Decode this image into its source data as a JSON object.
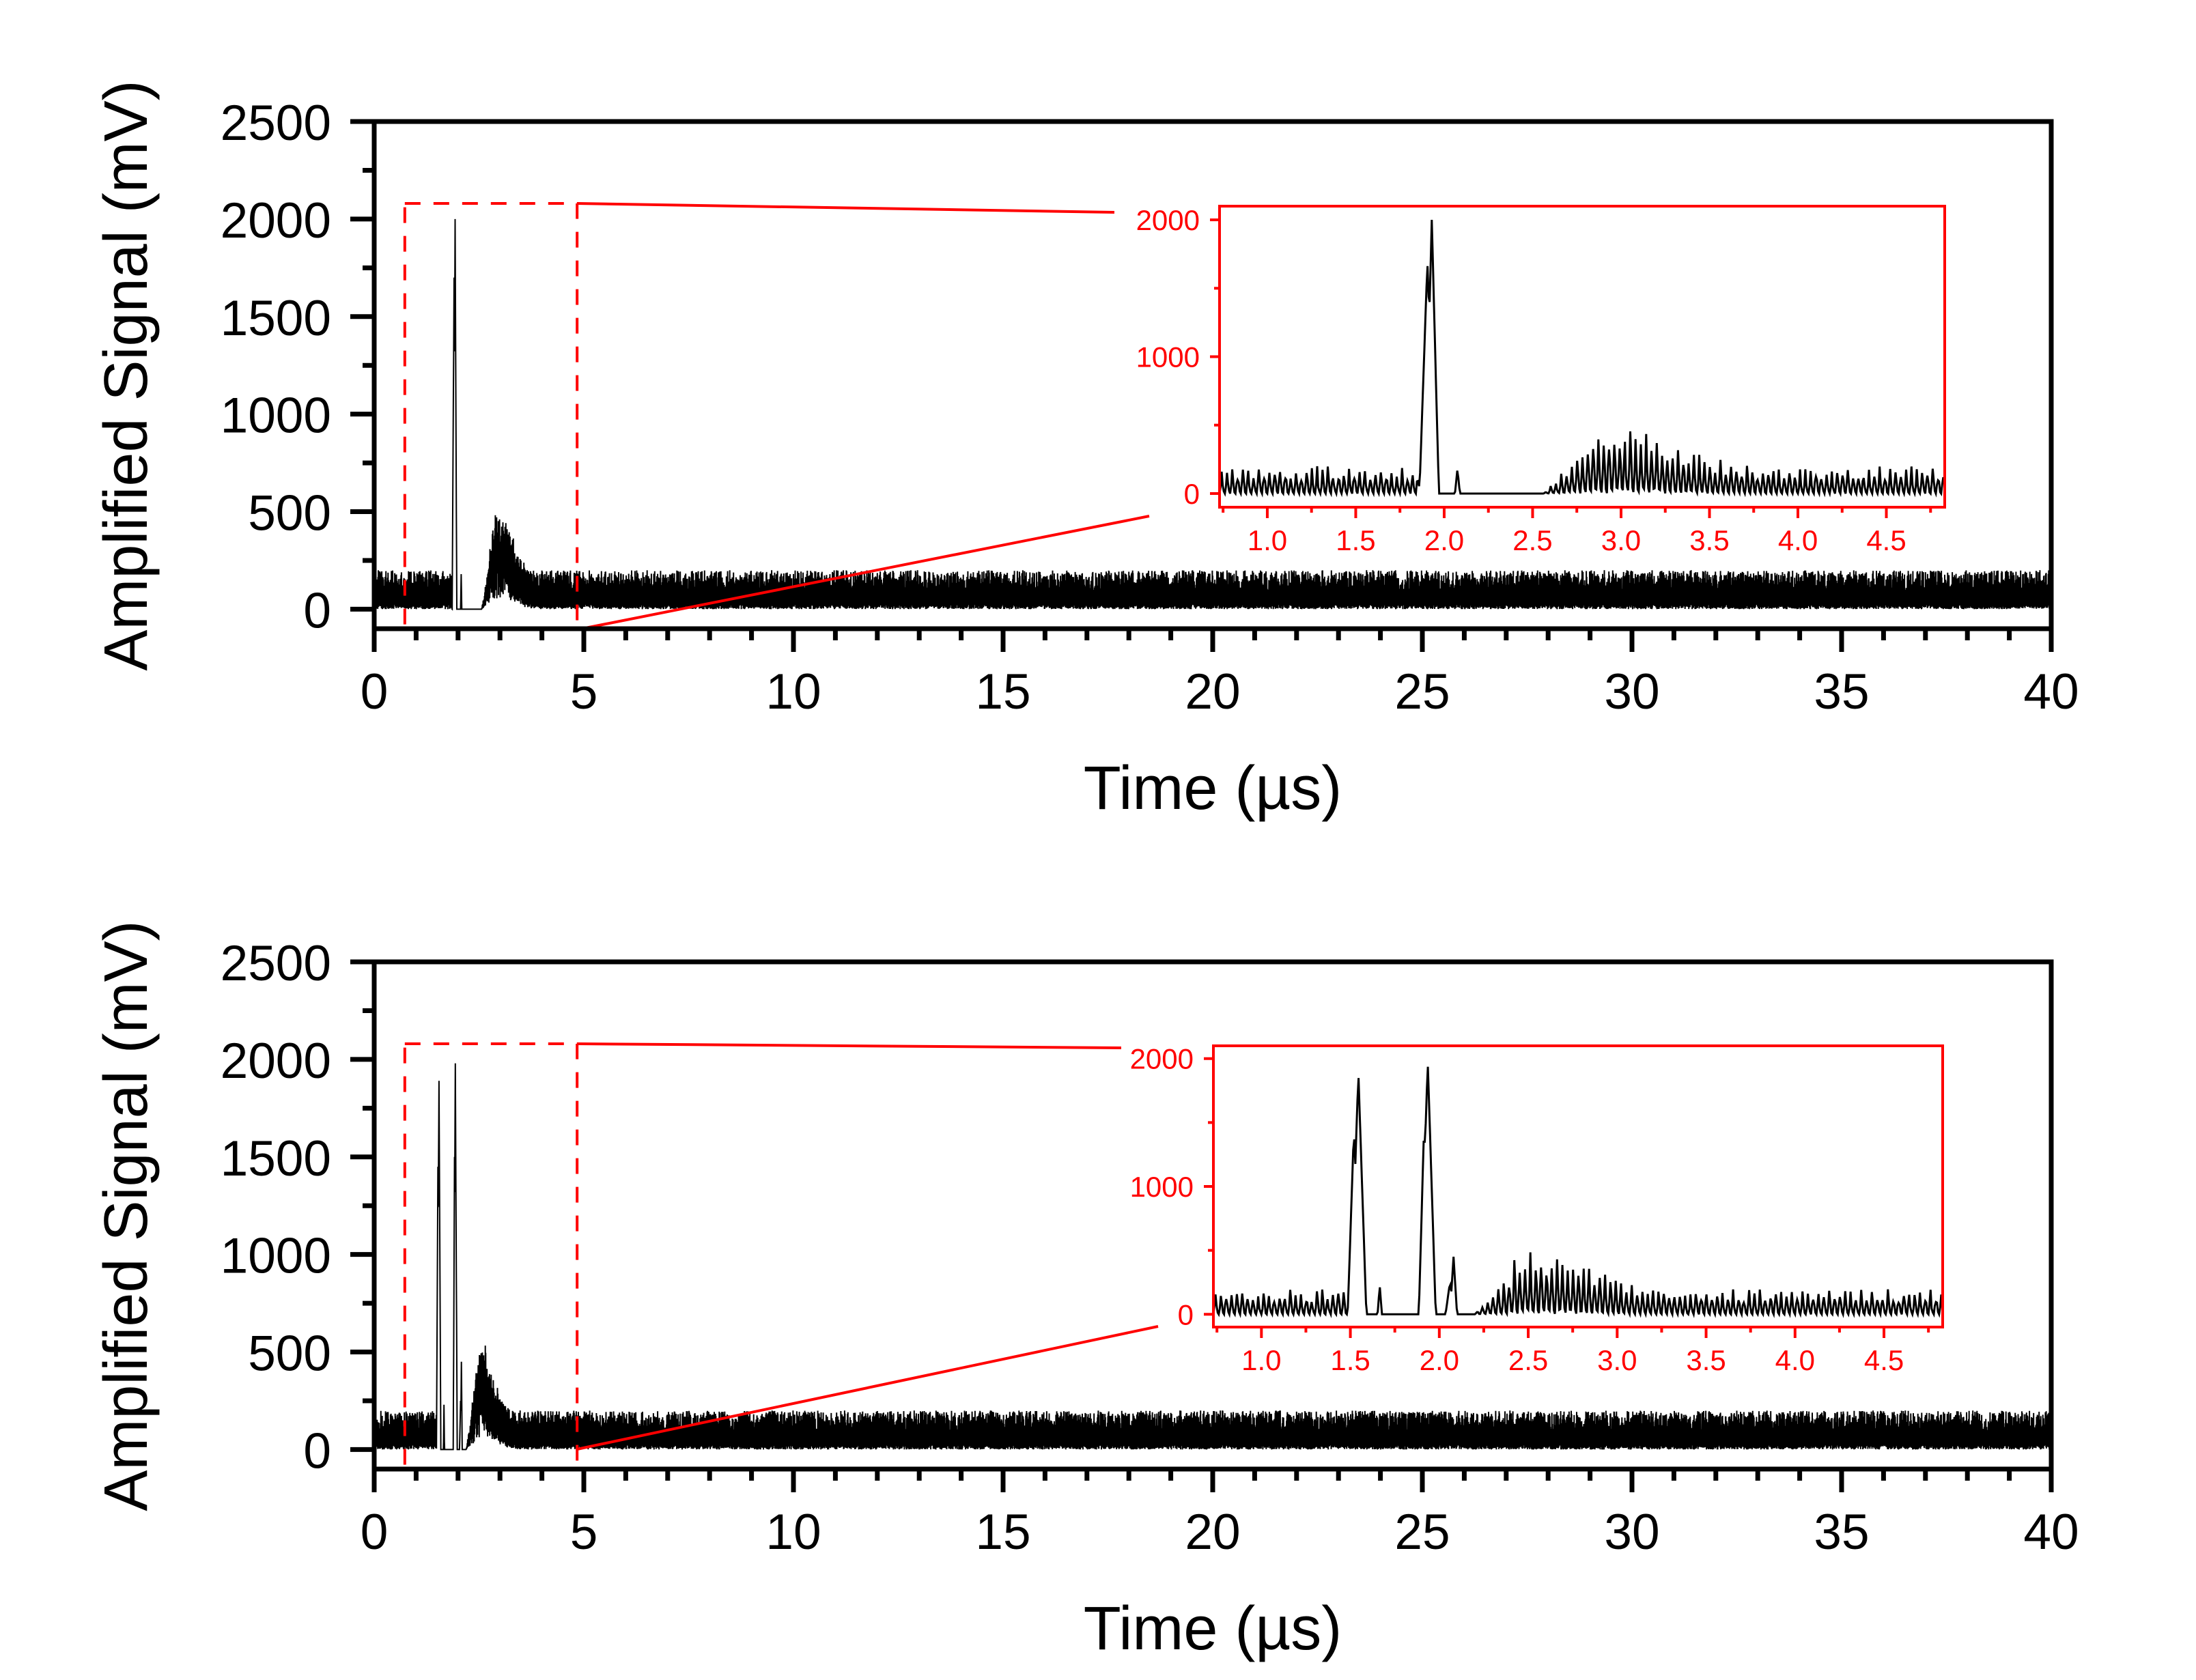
{
  "chart_data": [
    {
      "type": "line",
      "panel": "top",
      "xlabel": "Time (µs)",
      "ylabel": "Amplified Signal (mV)",
      "xlim": [
        0,
        40
      ],
      "ylim": [
        -100,
        2500
      ],
      "xticks": {
        "values": [
          0,
          5,
          10,
          15,
          20,
          25,
          30,
          35,
          40
        ],
        "labels": [
          "0",
          "5",
          "10",
          "15",
          "20",
          "25",
          "30",
          "35",
          "40"
        ]
      },
      "xminor_step": 1,
      "yticks": {
        "values": [
          0,
          500,
          1000,
          1500,
          2000,
          2500
        ],
        "labels": [
          "0",
          "500",
          "1000",
          "1500",
          "2000",
          "2500"
        ]
      },
      "yminor_step": 250,
      "grid": false,
      "zoom_region": {
        "xlim": [
          0.73,
          4.84
        ],
        "ylim": [
          -100,
          2080
        ],
        "color": "#ff0000",
        "style": "dashed"
      },
      "series": [
        {
          "name": "Amplified Signal",
          "color": "#000000",
          "baseline_noise_mV": [
            0,
            200
          ],
          "peaks": [
            {
              "t_us": 1.93,
              "mV": 2000,
              "width_us": 0.04
            },
            {
              "t_us": 1.905,
              "mV": 1700,
              "width_us": 0.045
            },
            {
              "t_us": 2.075,
              "mV": 180,
              "width_us": 0.014
            }
          ],
          "quiet_intervals_us": [
            [
              1.86,
              2.56
            ]
          ],
          "bump": {
            "t_us": 3.0,
            "mV": 320,
            "sigma_us": 0.3
          }
        }
      ],
      "inset": {
        "color": "#ff0000",
        "xlim": [
          0.73,
          4.83
        ],
        "ylim": [
          -100,
          2100
        ],
        "xticks": {
          "values": [
            1.0,
            1.5,
            2.0,
            2.5,
            3.0,
            3.5,
            4.0,
            4.5
          ],
          "labels": [
            "1.0",
            "1.5",
            "2.0",
            "2.5",
            "3.0",
            "3.5",
            "4.0",
            "4.5"
          ]
        },
        "xminor_step": 0.25,
        "yticks": {
          "values": [
            0,
            1000,
            2000
          ],
          "labels": [
            "0",
            "1000",
            "2000"
          ]
        },
        "yminor_step": 500
      }
    },
    {
      "type": "line",
      "panel": "bottom",
      "xlabel": "Time (µs)",
      "ylabel": "Amplified Signal (mV)",
      "xlim": [
        0,
        40
      ],
      "ylim": [
        -100,
        2500
      ],
      "xticks": {
        "values": [
          0,
          5,
          10,
          15,
          20,
          25,
          30,
          35,
          40
        ],
        "labels": [
          "0",
          "5",
          "10",
          "15",
          "20",
          "25",
          "30",
          "35",
          "40"
        ]
      },
      "xminor_step": 1,
      "yticks": {
        "values": [
          0,
          500,
          1000,
          1500,
          2000,
          2500
        ],
        "labels": [
          "0",
          "500",
          "1000",
          "1500",
          "2000",
          "2500"
        ]
      },
      "yminor_step": 250,
      "grid": false,
      "zoom_region": {
        "xlim": [
          0.73,
          4.84
        ],
        "ylim": [
          -100,
          2080
        ],
        "color": "#ff0000",
        "style": "dashed"
      },
      "series": [
        {
          "name": "Amplified Signal",
          "color": "#000000",
          "baseline_noise_mV": [
            0,
            200
          ],
          "peaks": [
            {
              "t_us": 1.545,
              "mV": 1890,
              "width_us": 0.045
            },
            {
              "t_us": 1.52,
              "mV": 1450,
              "width_us": 0.035
            },
            {
              "t_us": 1.665,
              "mV": 230,
              "width_us": 0.012
            },
            {
              "t_us": 1.935,
              "mV": 1980,
              "width_us": 0.045
            },
            {
              "t_us": 1.915,
              "mV": 1500,
              "width_us": 0.03
            },
            {
              "t_us": 2.08,
              "mV": 450,
              "width_us": 0.02
            },
            {
              "t_us": 2.06,
              "mV": 250,
              "width_us": 0.025
            }
          ],
          "quiet_intervals_us": [
            [
              1.49,
              2.19
            ]
          ],
          "bump": {
            "t_us": 2.58,
            "mV": 350,
            "sigma_us": 0.27
          }
        }
      ],
      "inset": {
        "color": "#ff0000",
        "xlim": [
          0.73,
          4.83
        ],
        "ylim": [
          -100,
          2100
        ],
        "xticks": {
          "values": [
            1.0,
            1.5,
            2.0,
            2.5,
            3.0,
            3.5,
            4.0,
            4.5
          ],
          "labels": [
            "1.0",
            "1.5",
            "2.0",
            "2.5",
            "3.0",
            "3.5",
            "4.0",
            "4.5"
          ]
        },
        "xminor_step": 0.25,
        "yticks": {
          "values": [
            0,
            1000,
            2000
          ],
          "labels": [
            "0",
            "1000",
            "2000"
          ]
        },
        "yminor_step": 500
      }
    }
  ]
}
